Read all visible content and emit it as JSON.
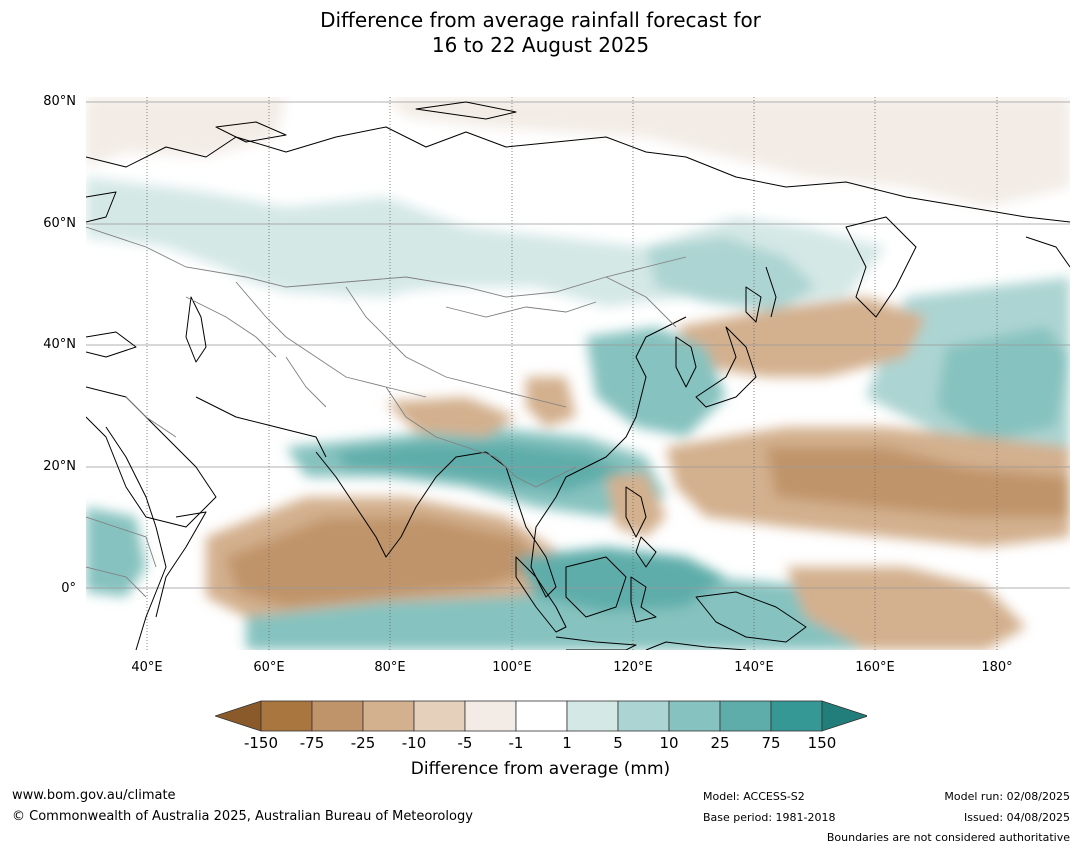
{
  "title": {
    "line1": "Difference from average rainfall forecast for",
    "line2": "16 to 22 August 2025"
  },
  "map": {
    "lat_labels": [
      "80°N",
      "60°N",
      "40°N",
      "20°N",
      "0°"
    ],
    "lon_labels": [
      "40°E",
      "60°E",
      "80°E",
      "100°E",
      "120°E",
      "140°E",
      "160°E",
      "180°"
    ],
    "extent": {
      "lon_min": 30,
      "lon_max": 192,
      "lat_min": -10,
      "lat_max": 81
    },
    "colors": {
      "ocean_bg": "#ffffff",
      "coast": "#000000",
      "borders": "#808080",
      "graticule": "#888888"
    }
  },
  "colorbar": {
    "ticks": [
      "-150",
      "-75",
      "-25",
      "-10",
      "-5",
      "-1",
      "1",
      "5",
      "10",
      "25",
      "75",
      "150"
    ],
    "colors": [
      "#8b5a2b",
      "#a97640",
      "#c0946a",
      "#d3b08e",
      "#e5d0bc",
      "#f3ece6",
      "#ffffff",
      "#d4e8e6",
      "#acd4d2",
      "#86c2bf",
      "#5eadaa",
      "#359895",
      "#227e7b"
    ],
    "label": "Difference from average (mm)"
  },
  "footer": {
    "website": "www.bom.gov.au/climate",
    "copyright": "© Commonwealth of Australia 2025, Australian Bureau of Meteorology",
    "model": "Model: ACCESS-S2",
    "base_period": "Base period: 1981-2018",
    "model_run": "Model run: 02/08/2025",
    "issued": "Issued: 04/08/2025",
    "boundaries_note": "Boundaries are not considered authoritative"
  }
}
